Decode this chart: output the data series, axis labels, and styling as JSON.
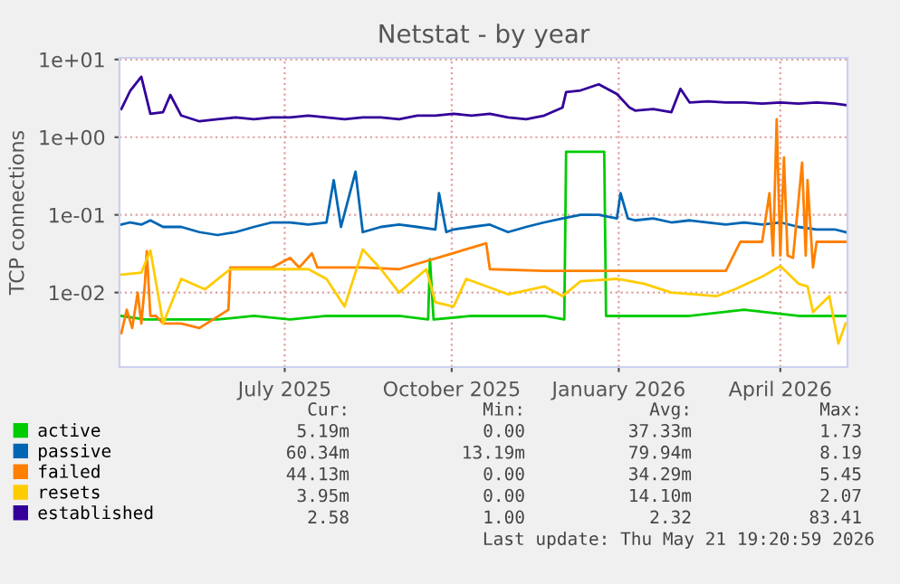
{
  "chart_data": {
    "type": "line",
    "title": "Netstat - by year",
    "ylabel": "TCP connections",
    "log": true,
    "grid": true,
    "legend": "bottom",
    "marker": "none",
    "line_style": "solid",
    "xlim": [
      "2025-04-15",
      "2026-05-21"
    ],
    "ylim": [
      0.0011,
      10.5
    ],
    "xticks": [
      {
        "value": "2025-07-15",
        "label": "July 2025"
      },
      {
        "value": "2025-10-15",
        "label": "October 2025"
      },
      {
        "value": "2026-01-15",
        "label": "January 2026"
      },
      {
        "value": "2026-04-14",
        "label": "April 2026"
      }
    ],
    "yticks": [
      {
        "value": 0.01,
        "label": "1e-02"
      },
      {
        "value": 0.1,
        "label": "1e-01"
      },
      {
        "value": 1,
        "label": "1e+00"
      },
      {
        "value": 10,
        "label": "1e+01"
      }
    ],
    "series": [
      {
        "name": "active",
        "color": "#00cc00",
        "x": [
          "2025-04-16",
          "2025-04-29",
          "2025-05-19",
          "2025-06-08",
          "2025-06-28",
          "2025-07-18",
          "2025-08-07",
          "2025-08-27",
          "2025-09-16",
          "2025-10-02",
          "2025-10-03",
          "2025-10-05",
          "2025-10-26",
          "2025-11-15",
          "2025-12-05",
          "2025-12-16",
          "2025-12-17",
          "2026-01-07",
          "2026-01-08",
          "2026-01-24",
          "2026-02-23",
          "2026-03-25",
          "2026-04-24",
          "2026-05-20"
        ],
        "values": [
          0.005,
          0.0045,
          0.0045,
          0.0045,
          0.005,
          0.0045,
          0.005,
          0.005,
          0.005,
          0.0045,
          0.027,
          0.0045,
          0.005,
          0.005,
          0.005,
          0.0045,
          0.65,
          0.65,
          0.005,
          0.005,
          0.005,
          0.006,
          0.005,
          0.005
        ]
      },
      {
        "name": "passive",
        "color": "#0066b3",
        "x": [
          "2025-04-16",
          "2025-04-21",
          "2025-04-27",
          "2025-05-02",
          "2025-05-09",
          "2025-05-19",
          "2025-05-29",
          "2025-06-08",
          "2025-06-18",
          "2025-06-28",
          "2025-07-08",
          "2025-07-18",
          "2025-07-28",
          "2025-08-07",
          "2025-08-11",
          "2025-08-15",
          "2025-08-23",
          "2025-08-27",
          "2025-09-06",
          "2025-09-16",
          "2025-09-26",
          "2025-10-06",
          "2025-10-08",
          "2025-10-12",
          "2025-10-16",
          "2025-10-26",
          "2025-11-05",
          "2025-11-15",
          "2025-11-25",
          "2025-12-05",
          "2025-12-15",
          "2025-12-25",
          "2026-01-04",
          "2026-01-14",
          "2026-01-16",
          "2026-01-20",
          "2026-01-24",
          "2026-02-03",
          "2026-02-13",
          "2026-02-23",
          "2026-03-05",
          "2026-03-15",
          "2026-03-25",
          "2026-04-04",
          "2026-04-14",
          "2026-04-24",
          "2026-05-04",
          "2026-05-14",
          "2026-05-20"
        ],
        "values": [
          0.075,
          0.08,
          0.075,
          0.085,
          0.07,
          0.07,
          0.06,
          0.055,
          0.06,
          0.07,
          0.08,
          0.08,
          0.075,
          0.08,
          0.28,
          0.07,
          0.36,
          0.06,
          0.07,
          0.075,
          0.07,
          0.065,
          0.19,
          0.06,
          0.065,
          0.07,
          0.075,
          0.06,
          0.07,
          0.08,
          0.09,
          0.1,
          0.1,
          0.09,
          0.19,
          0.09,
          0.085,
          0.09,
          0.08,
          0.085,
          0.08,
          0.075,
          0.08,
          0.075,
          0.08,
          0.07,
          0.065,
          0.065,
          0.06
        ]
      },
      {
        "name": "failed",
        "color": "#ff8000",
        "x": [
          "2025-04-16",
          "2025-04-19",
          "2025-04-22",
          "2025-04-25",
          "2025-04-27",
          "2025-04-29",
          "2025-04-30",
          "2025-05-02",
          "2025-05-05",
          "2025-05-09",
          "2025-05-19",
          "2025-05-29",
          "2025-06-14",
          "2025-06-15",
          "2025-07-08",
          "2025-07-18",
          "2025-07-23",
          "2025-07-30",
          "2025-08-02",
          "2025-08-27",
          "2025-09-16",
          "2025-11-03",
          "2025-11-05",
          "2025-12-05",
          "2026-01-24",
          "2026-03-15",
          "2026-03-23",
          "2026-04-04",
          "2026-04-08",
          "2026-04-10",
          "2026-04-12",
          "2026-04-14",
          "2026-04-16",
          "2026-04-18",
          "2026-04-21",
          "2026-04-26",
          "2026-04-28",
          "2026-04-29",
          "2026-05-02",
          "2026-05-04",
          "2026-05-20"
        ],
        "values": [
          0.003,
          0.006,
          0.0035,
          0.01,
          0.004,
          0.013,
          0.034,
          0.005,
          0.005,
          0.004,
          0.004,
          0.0035,
          0.006,
          0.021,
          0.021,
          0.028,
          0.021,
          0.032,
          0.021,
          0.021,
          0.02,
          0.043,
          0.02,
          0.019,
          0.019,
          0.019,
          0.045,
          0.045,
          0.19,
          0.03,
          1.7,
          0.03,
          0.55,
          0.03,
          0.028,
          0.47,
          0.03,
          0.28,
          0.021,
          0.045,
          0.045
        ]
      },
      {
        "name": "resets",
        "color": "#ffcc00",
        "x": [
          "2025-04-16",
          "2025-04-27",
          "2025-05-02",
          "2025-05-09",
          "2025-05-19",
          "2025-06-01",
          "2025-06-15",
          "2025-07-08",
          "2025-07-28",
          "2025-08-07",
          "2025-08-17",
          "2025-08-27",
          "2025-09-06",
          "2025-09-16",
          "2025-10-01",
          "2025-10-06",
          "2025-10-16",
          "2025-10-23",
          "2025-11-15",
          "2025-12-05",
          "2025-12-15",
          "2025-12-25",
          "2026-01-14",
          "2026-01-29",
          "2026-02-13",
          "2026-03-10",
          "2026-03-20",
          "2026-04-04",
          "2026-04-14",
          "2026-04-24",
          "2026-04-29",
          "2026-05-02",
          "2026-05-11",
          "2026-05-16",
          "2026-05-20"
        ],
        "values": [
          0.017,
          0.018,
          0.035,
          0.004,
          0.015,
          0.011,
          0.02,
          0.02,
          0.02,
          0.015,
          0.0066,
          0.036,
          0.02,
          0.01,
          0.02,
          0.0075,
          0.0066,
          0.015,
          0.0095,
          0.012,
          0.009,
          0.014,
          0.015,
          0.013,
          0.01,
          0.009,
          0.011,
          0.016,
          0.022,
          0.013,
          0.012,
          0.0056,
          0.009,
          0.0022,
          0.004
        ]
      },
      {
        "name": "established",
        "color": "#330099",
        "x": [
          "2025-04-16",
          "2025-04-21",
          "2025-04-27",
          "2025-05-02",
          "2025-05-09",
          "2025-05-13",
          "2025-05-19",
          "2025-05-29",
          "2025-06-08",
          "2025-06-18",
          "2025-06-28",
          "2025-07-08",
          "2025-07-18",
          "2025-07-28",
          "2025-08-07",
          "2025-08-17",
          "2025-08-27",
          "2025-09-06",
          "2025-09-16",
          "2025-09-26",
          "2025-10-06",
          "2025-10-16",
          "2025-10-26",
          "2025-11-05",
          "2025-11-15",
          "2025-11-25",
          "2025-12-05",
          "2025-12-15",
          "2025-12-17",
          "2025-12-25",
          "2026-01-04",
          "2026-01-14",
          "2026-01-21",
          "2026-01-24",
          "2026-02-03",
          "2026-02-13",
          "2026-02-18",
          "2026-02-23",
          "2026-03-05",
          "2026-03-15",
          "2026-03-25",
          "2026-04-04",
          "2026-04-14",
          "2026-04-24",
          "2026-05-04",
          "2026-05-14",
          "2026-05-20"
        ],
        "values": [
          2.3,
          4.0,
          6.0,
          2.0,
          2.1,
          3.5,
          1.9,
          1.6,
          1.7,
          1.8,
          1.7,
          1.8,
          1.8,
          1.9,
          1.8,
          1.7,
          1.8,
          1.8,
          1.7,
          1.9,
          1.9,
          2.0,
          1.9,
          2.0,
          1.8,
          1.7,
          1.9,
          2.4,
          3.8,
          4.0,
          4.8,
          3.6,
          2.4,
          2.2,
          2.3,
          2.1,
          4.2,
          2.8,
          2.9,
          2.8,
          2.8,
          2.7,
          2.8,
          2.7,
          2.8,
          2.7,
          2.6
        ]
      }
    ],
    "annotations": [
      "Cur:",
      "Min:",
      "Avg:",
      "Max:",
      "5.19m",
      "0.00",
      "37.33m",
      "1.73",
      "60.34m",
      "13.19m",
      "79.94m",
      "8.19",
      "44.13m",
      "0.00",
      "34.29m",
      "5.45",
      "3.95m",
      "0.00",
      "14.10m",
      "2.07",
      "2.58",
      "1.00",
      "2.32",
      "83.41",
      "Last update: Thu May 21 19:20:59 2026"
    ]
  }
}
